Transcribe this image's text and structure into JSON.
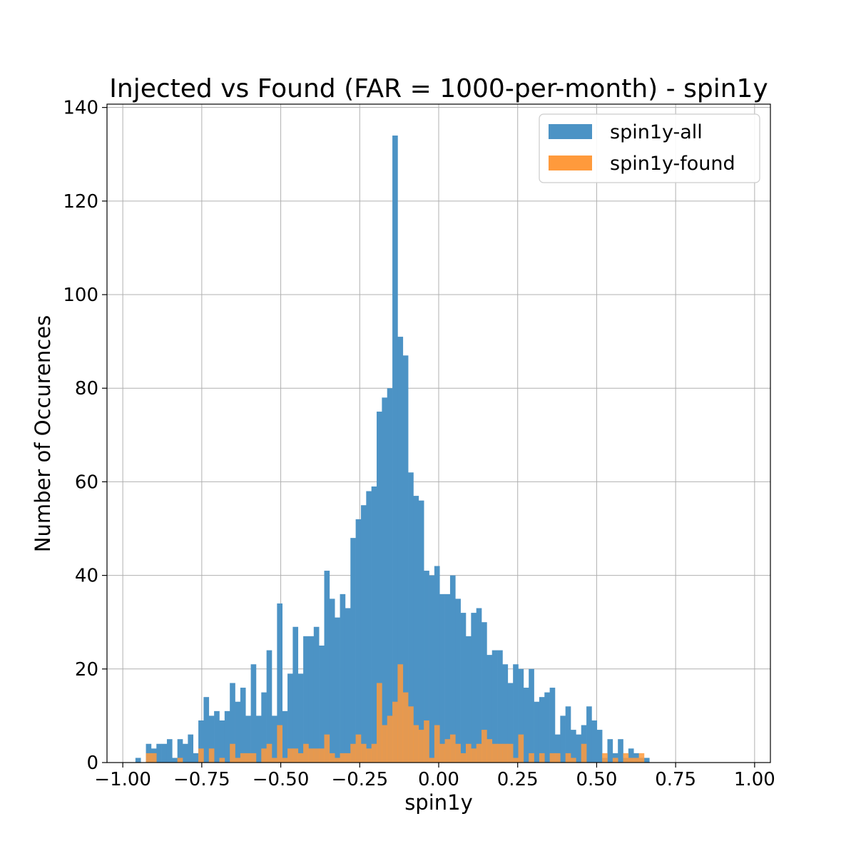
{
  "chart_data": {
    "type": "bar",
    "title": "Injected vs Found (FAR = 1000-per-month) - spin1y",
    "xlabel": "spin1y",
    "ylabel": "Number of Occurences",
    "xlim": [
      -1.0,
      1.0
    ],
    "ylim": [
      0,
      140
    ],
    "grid": true,
    "legend_position": "top-right",
    "xticks": [
      {
        "value": -1.0,
        "label": "−1.00"
      },
      {
        "value": -0.75,
        "label": "−0.75"
      },
      {
        "value": -0.5,
        "label": "−0.50"
      },
      {
        "value": -0.25,
        "label": "−0.25"
      },
      {
        "value": 0.0,
        "label": "0.00"
      },
      {
        "value": 0.25,
        "label": "0.25"
      },
      {
        "value": 0.5,
        "label": "0.50"
      },
      {
        "value": 0.75,
        "label": "0.75"
      },
      {
        "value": 1.0,
        "label": "1.00"
      }
    ],
    "yticks": [
      {
        "value": 0,
        "label": "0"
      },
      {
        "value": 20,
        "label": "20"
      },
      {
        "value": 40,
        "label": "40"
      },
      {
        "value": 60,
        "label": "60"
      },
      {
        "value": 80,
        "label": "80"
      },
      {
        "value": 100,
        "label": "100"
      },
      {
        "value": 120,
        "label": "120"
      },
      {
        "value": 140,
        "label": "140"
      }
    ],
    "bin_start": -0.96,
    "bin_width": 0.0166,
    "series": [
      {
        "name": "spin1y-all",
        "color": "#4c93c5",
        "values": [
          1,
          0,
          4,
          3,
          4,
          4,
          5,
          1,
          5,
          4,
          6,
          2,
          9,
          14,
          10,
          11,
          9,
          11,
          17,
          13,
          16,
          10,
          21,
          10,
          15,
          24,
          10,
          34,
          11,
          19,
          29,
          19,
          27,
          27,
          29,
          25,
          41,
          35,
          31,
          36,
          33,
          48,
          52,
          55,
          58,
          59,
          75,
          78,
          80,
          134,
          91,
          87,
          62,
          57,
          56,
          41,
          40,
          42,
          36,
          36,
          40,
          35,
          32,
          27,
          32,
          33,
          30,
          23,
          24,
          24,
          21,
          17,
          21,
          20,
          16,
          20,
          13,
          14,
          15,
          16,
          6,
          10,
          12,
          7,
          6,
          8,
          12,
          9,
          7,
          1,
          5,
          2,
          5,
          1,
          3,
          2,
          1,
          1
        ]
      },
      {
        "name": "spin1y-found",
        "color": "#ff9a3c",
        "values": [
          0,
          0,
          2,
          2,
          0,
          0,
          0,
          0,
          1,
          0,
          0,
          0,
          3,
          0,
          3,
          0,
          1,
          0,
          4,
          1,
          2,
          2,
          2,
          0,
          3,
          4,
          1,
          8,
          1,
          3,
          3,
          2,
          4,
          3,
          3,
          3,
          6,
          2,
          1,
          2,
          2,
          4,
          6,
          4,
          3,
          4,
          17,
          8,
          10,
          13,
          21,
          15,
          12,
          8,
          7,
          9,
          1,
          8,
          4,
          5,
          6,
          4,
          2,
          4,
          3,
          4,
          7,
          5,
          4,
          4,
          4,
          4,
          1,
          6,
          0,
          2,
          0,
          2,
          0,
          2,
          2,
          0,
          2,
          1,
          0,
          4,
          0,
          0,
          0,
          2,
          0,
          1,
          0,
          2,
          1,
          1,
          2,
          0
        ]
      }
    ]
  }
}
